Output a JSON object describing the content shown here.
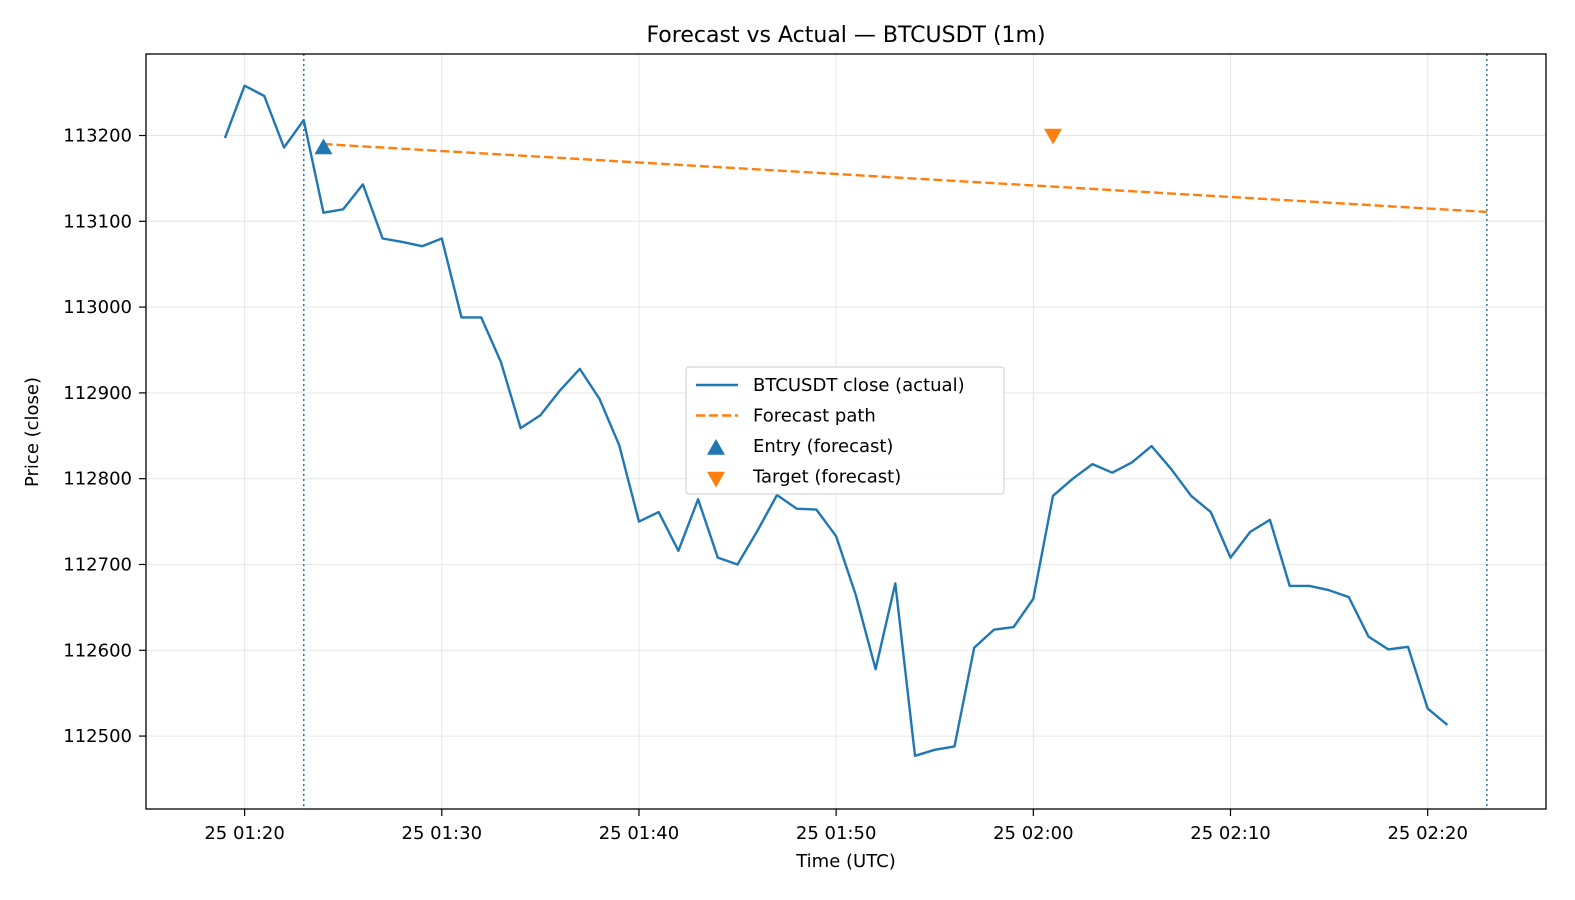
{
  "chart_data": {
    "type": "line",
    "title": "Forecast vs Actual — BTCUSDT (1m)",
    "xlabel": "Time (UTC)",
    "ylabel": "Price (close)",
    "grid": true,
    "legend_placement": "center",
    "xlim": [
      "25 01:15",
      "25 02:26"
    ],
    "ylim": [
      112415,
      113295
    ],
    "x_ticks": [
      "25 01:20",
      "25 01:30",
      "25 01:40",
      "25 01:50",
      "25 02:00",
      "25 02:10",
      "25 02:20"
    ],
    "y_ticks": [
      112500,
      112600,
      112700,
      112800,
      112900,
      113000,
      113100,
      113200
    ],
    "vertical_lines": [
      "25 01:23",
      "25 02:23"
    ],
    "series": [
      {
        "name": "BTCUSDT close (actual)",
        "kind": "line",
        "color": "#1f77b4",
        "x": [
          "25 01:19",
          "25 01:20",
          "25 01:21",
          "25 01:22",
          "25 01:23",
          "25 01:24",
          "25 01:25",
          "25 01:26",
          "25 01:27",
          "25 01:28",
          "25 01:29",
          "25 01:30",
          "25 01:31",
          "25 01:32",
          "25 01:33",
          "25 01:34",
          "25 01:35",
          "25 01:36",
          "25 01:37",
          "25 01:38",
          "25 01:39",
          "25 01:40",
          "25 01:41",
          "25 01:42",
          "25 01:43",
          "25 01:44",
          "25 01:45",
          "25 01:46",
          "25 01:47",
          "25 01:48",
          "25 01:49",
          "25 01:50",
          "25 01:51",
          "25 01:52",
          "25 01:53",
          "25 01:54",
          "25 01:55",
          "25 01:56",
          "25 01:57",
          "25 01:58",
          "25 01:59",
          "25 02:00",
          "25 02:01",
          "25 02:02",
          "25 02:03",
          "25 02:04",
          "25 02:05",
          "25 02:06",
          "25 02:07",
          "25 02:08",
          "25 02:09",
          "25 02:10",
          "25 02:11",
          "25 02:12",
          "25 02:13",
          "25 02:14",
          "25 02:15",
          "25 02:16",
          "25 02:17",
          "25 02:18",
          "25 02:19",
          "25 02:20",
          "25 02:21"
        ],
        "y": [
          113197,
          113258,
          113246,
          113186,
          113218,
          113110,
          113114,
          113143,
          113080,
          113076,
          113071,
          113080,
          112988,
          112988,
          112936,
          112859,
          112874,
          112903,
          112928,
          112893,
          112839,
          112750,
          112761,
          112716,
          112776,
          112708,
          112700,
          112739,
          112781,
          112765,
          112764,
          112733,
          112664,
          112578,
          112678,
          112477,
          112484,
          112488,
          112603,
          112624,
          112627,
          112660,
          112780,
          112800,
          112817,
          112807,
          112819,
          112838,
          112811,
          112780,
          112761,
          112708,
          112738,
          112752,
          112675,
          112675,
          112670,
          112662,
          112616,
          112601,
          112604,
          112532,
          112513
        ]
      },
      {
        "name": "Forecast path",
        "kind": "dashed-line",
        "color": "#ff7f0e",
        "x": [
          "25 01:24",
          "25 02:23"
        ],
        "y": [
          113190,
          113111
        ]
      },
      {
        "name": "Entry (forecast)",
        "kind": "marker-triangle-up",
        "color": "#1f77b4",
        "x": [
          "25 01:24"
        ],
        "y": [
          113186
        ]
      },
      {
        "name": "Target (forecast)",
        "kind": "marker-triangle-down",
        "color": "#ff7f0e",
        "x": [
          "25 02:01"
        ],
        "y": [
          113200
        ]
      }
    ]
  }
}
